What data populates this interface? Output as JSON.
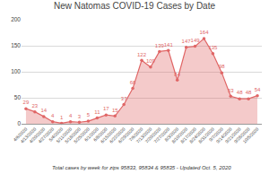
{
  "chart_data": {
    "type": "area",
    "title": "New Natomas COVID-19 Cases by Date",
    "categories": [
      "4/6/2020",
      "4/13/2020",
      "4/20/2020",
      "4/27/2020",
      "5/4/2020",
      "5/11/2020",
      "5/18/2020",
      "5/25/2020",
      "6/1/2020",
      "6/8/2020",
      "6/15/2020",
      "6/22/2020",
      "6/29/2020",
      "7/6/2020",
      "7/13/2020",
      "7/20/2020",
      "7/27/2020",
      "8/3/2020",
      "8/10/2020",
      "8/17/2020",
      "8/24/2020",
      "8/31/2020",
      "9/7/2020",
      "9/14/2020",
      "9/21/2020",
      "9/28/2020",
      "10/5/2020"
    ],
    "values": [
      29,
      23,
      14,
      4,
      1,
      4,
      3,
      5,
      11,
      17,
      15,
      37,
      68,
      122,
      109,
      139,
      141,
      84,
      147,
      149,
      164,
      135,
      98,
      53,
      48,
      48,
      54
    ],
    "color": "#e06666",
    "marker": "circle",
    "data_labels": true,
    "ylim": [
      0,
      200
    ],
    "yticks": [
      0,
      50,
      100,
      150,
      200
    ],
    "grid": true,
    "annotations": [
      "Total cases by week for zips 95833, 95834 & 95835 - Updated Oct. 5, 2020"
    ]
  }
}
